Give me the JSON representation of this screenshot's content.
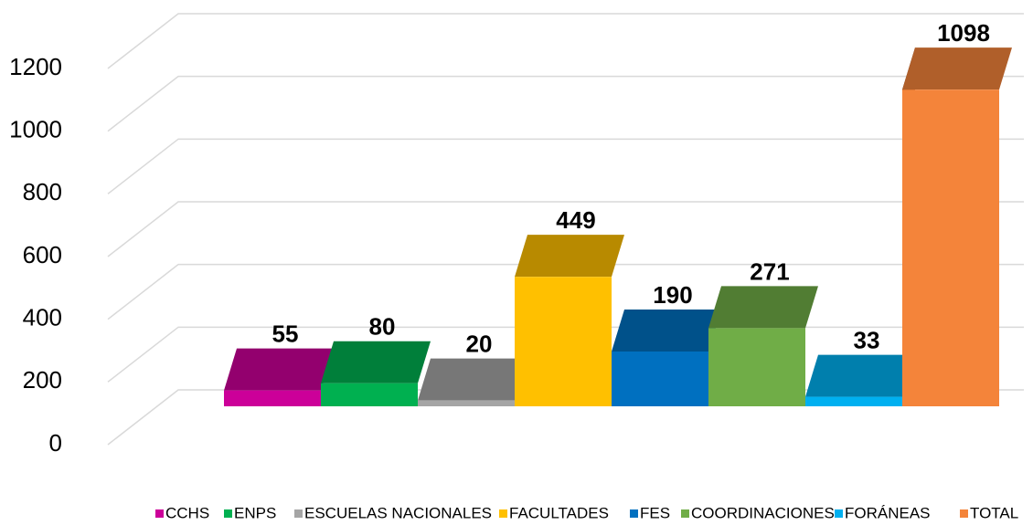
{
  "chart_data": {
    "type": "bar3d",
    "series": [
      {
        "name": "CCHS",
        "color": "#cc0099",
        "values": [
          55
        ]
      },
      {
        "name": "ENPS",
        "color": "#00b050",
        "values": [
          80
        ]
      },
      {
        "name": "ESCUELAS NACIONALES",
        "color": "#a5a5a5",
        "values": [
          20
        ]
      },
      {
        "name": "FACULTADES",
        "color": "#ffc000",
        "values": [
          449
        ]
      },
      {
        "name": "FES",
        "color": "#0070c0",
        "values": [
          190
        ]
      },
      {
        "name": "COORDINACIONES",
        "color": "#70ad47",
        "values": [
          271
        ]
      },
      {
        "name": "FORÁNEAS",
        "color": "#00b0f0",
        "values": [
          33
        ]
      },
      {
        "name": "TOTAL",
        "color": "#f4843a",
        "values": [
          1098
        ]
      }
    ],
    "ylim": [
      0,
      1200
    ],
    "yticks": [
      0,
      200,
      400,
      600,
      800,
      1000,
      1200
    ],
    "grid": true,
    "legend": "bottom"
  }
}
